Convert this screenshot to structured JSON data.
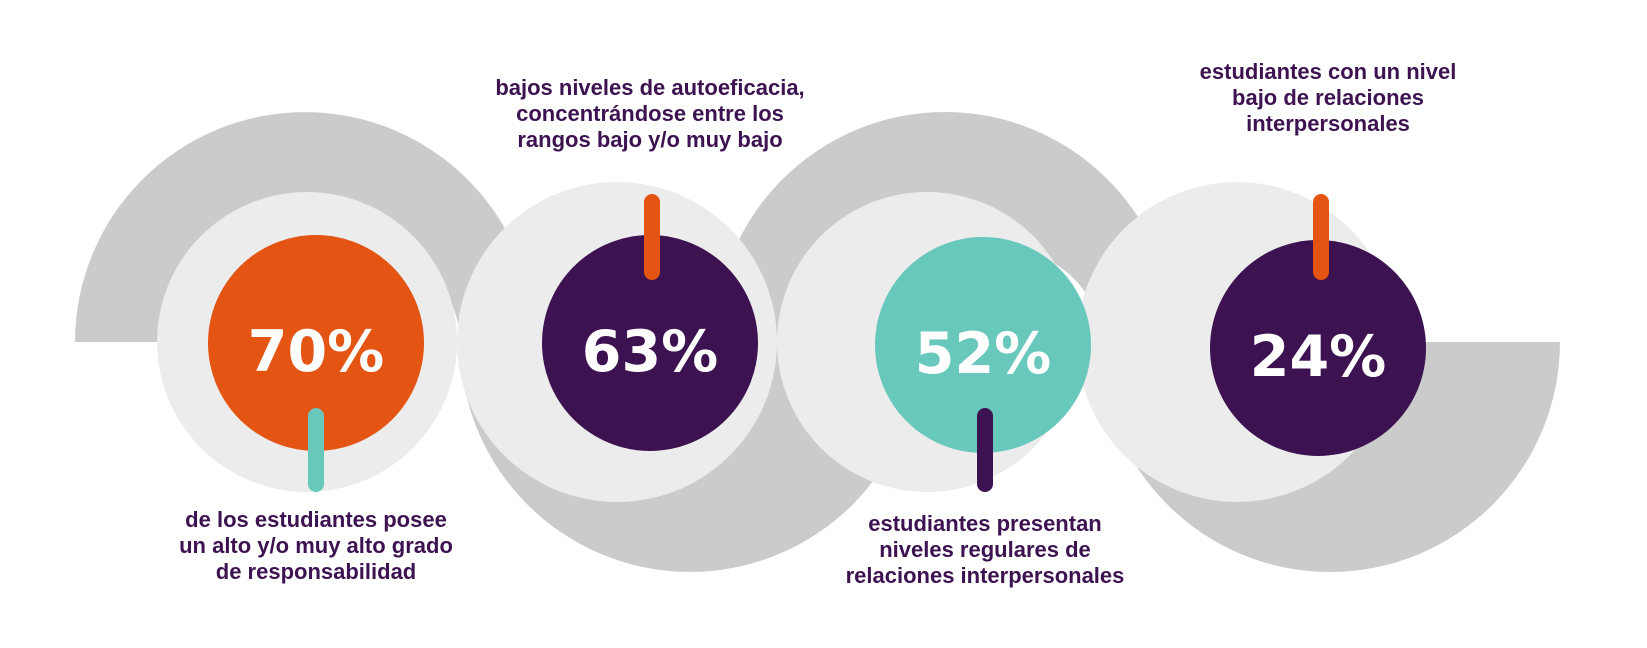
{
  "colors": {
    "ring_outer": "#cbcbcb",
    "ring_inner": "#ececec",
    "orange": "#e45412",
    "purple": "#3d1250",
    "teal": "#68c8bc",
    "text": "#3d1250",
    "white": "#ffffff"
  },
  "stats": [
    {
      "value": "70%",
      "circle_color": "orange",
      "connector_color": "teal",
      "caption_lines": [
        "de los estudiantes posee",
        "un alto y/o muy alto grado",
        "de responsabilidad"
      ]
    },
    {
      "value": "63%",
      "circle_color": "purple",
      "connector_color": "orange",
      "caption_lines": [
        "bajos niveles de autoeficacia,",
        "concentrándose entre los",
        "rangos bajo y/o muy bajo"
      ]
    },
    {
      "value": "52%",
      "circle_color": "teal",
      "connector_color": "purple",
      "caption_lines": [
        "estudiantes presentan",
        "niveles regulares de",
        "relaciones interpersonales"
      ]
    },
    {
      "value": "24%",
      "circle_color": "purple",
      "connector_color": "orange",
      "caption_lines": [
        "estudiantes con un nivel",
        "bajo de relaciones",
        "interpersonales"
      ]
    }
  ]
}
